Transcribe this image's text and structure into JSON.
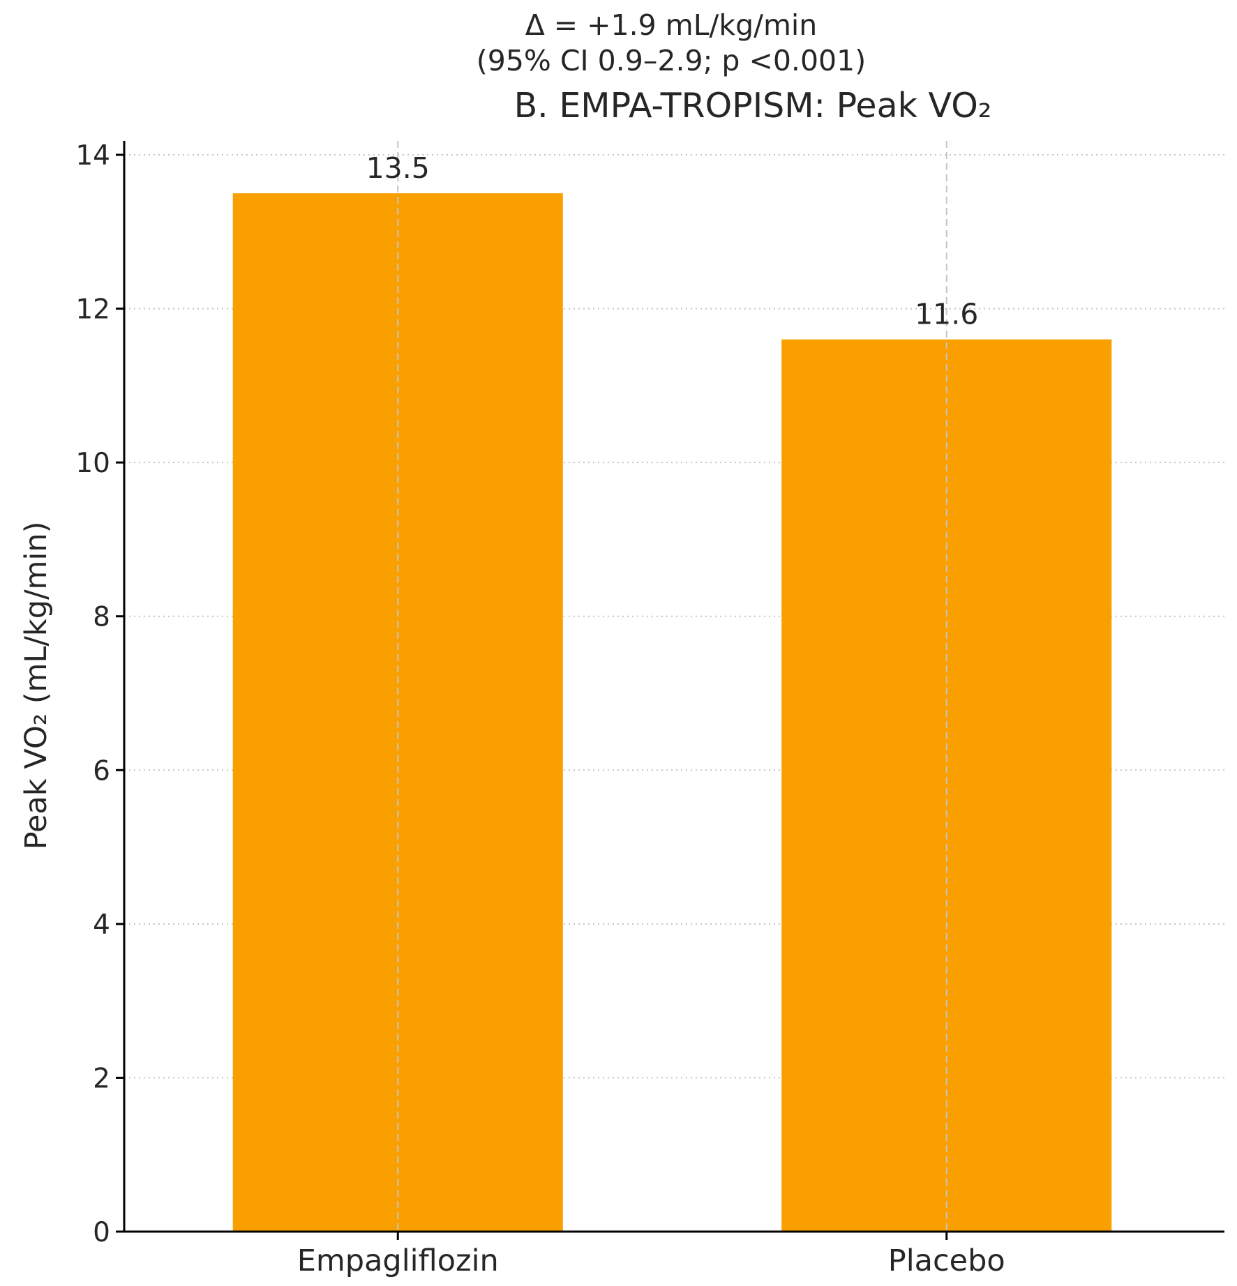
{
  "chart_data": {
    "type": "bar",
    "annotation_lines": [
      "Δ = +1.9 mL/kg/min",
      "(95% CI 0.9–2.9; p <0.001)"
    ],
    "title": "B. EMPA-TROPISM: Peak VO₂",
    "xlabel": "",
    "ylabel": "Peak VO₂ (mL/kg/min)",
    "categories": [
      "Empagliflozin",
      "Placebo"
    ],
    "values": [
      13.5,
      11.6
    ],
    "data_labels": [
      "13.5",
      "11.6"
    ],
    "ylim": [
      0,
      14
    ],
    "yticks": [
      0,
      2,
      4,
      6,
      8,
      10,
      12,
      14
    ],
    "grid": true,
    "bar_color": "#f9a000"
  }
}
